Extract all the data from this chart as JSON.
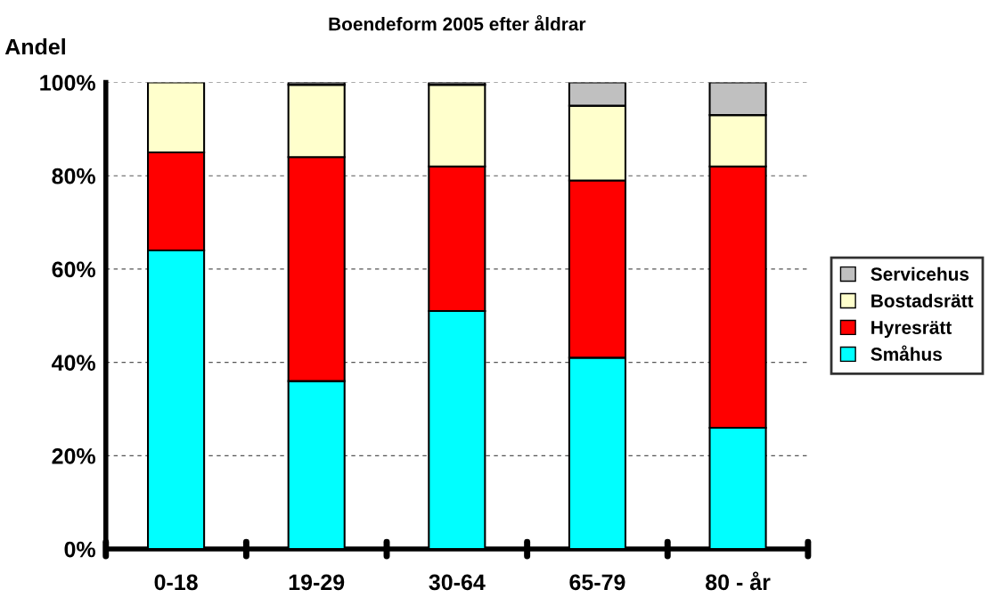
{
  "chart_data": {
    "type": "bar",
    "title": "Boendeform 2005 efter åldrar",
    "ylabel": "Andel",
    "categories": [
      "0-18",
      "19-29",
      "30-64",
      "65-79",
      "80 - år"
    ],
    "series": [
      {
        "name": "Småhus",
        "color": "#00ffff",
        "values": [
          64,
          36,
          51,
          41,
          26
        ]
      },
      {
        "name": "Hyresrätt",
        "color": "#ff0000",
        "values": [
          21,
          48,
          31,
          38,
          56
        ]
      },
      {
        "name": "Bostadsrätt",
        "color": "#ffffcc",
        "values": [
          15,
          15.5,
          17.5,
          16,
          11
        ]
      },
      {
        "name": "Servicehus",
        "color": "#c0c0c0",
        "values": [
          0,
          0.5,
          0.5,
          5,
          7
        ]
      }
    ],
    "stacked": true,
    "ylim": [
      0,
      100
    ],
    "yticks": [
      {
        "value": 0,
        "label": "0%"
      },
      {
        "value": 20,
        "label": "20%"
      },
      {
        "value": 40,
        "label": "40%"
      },
      {
        "value": 60,
        "label": "60%"
      },
      {
        "value": 80,
        "label": "80%"
      },
      {
        "value": 100,
        "label": "100%"
      }
    ],
    "grid": "y",
    "legend": "right"
  }
}
